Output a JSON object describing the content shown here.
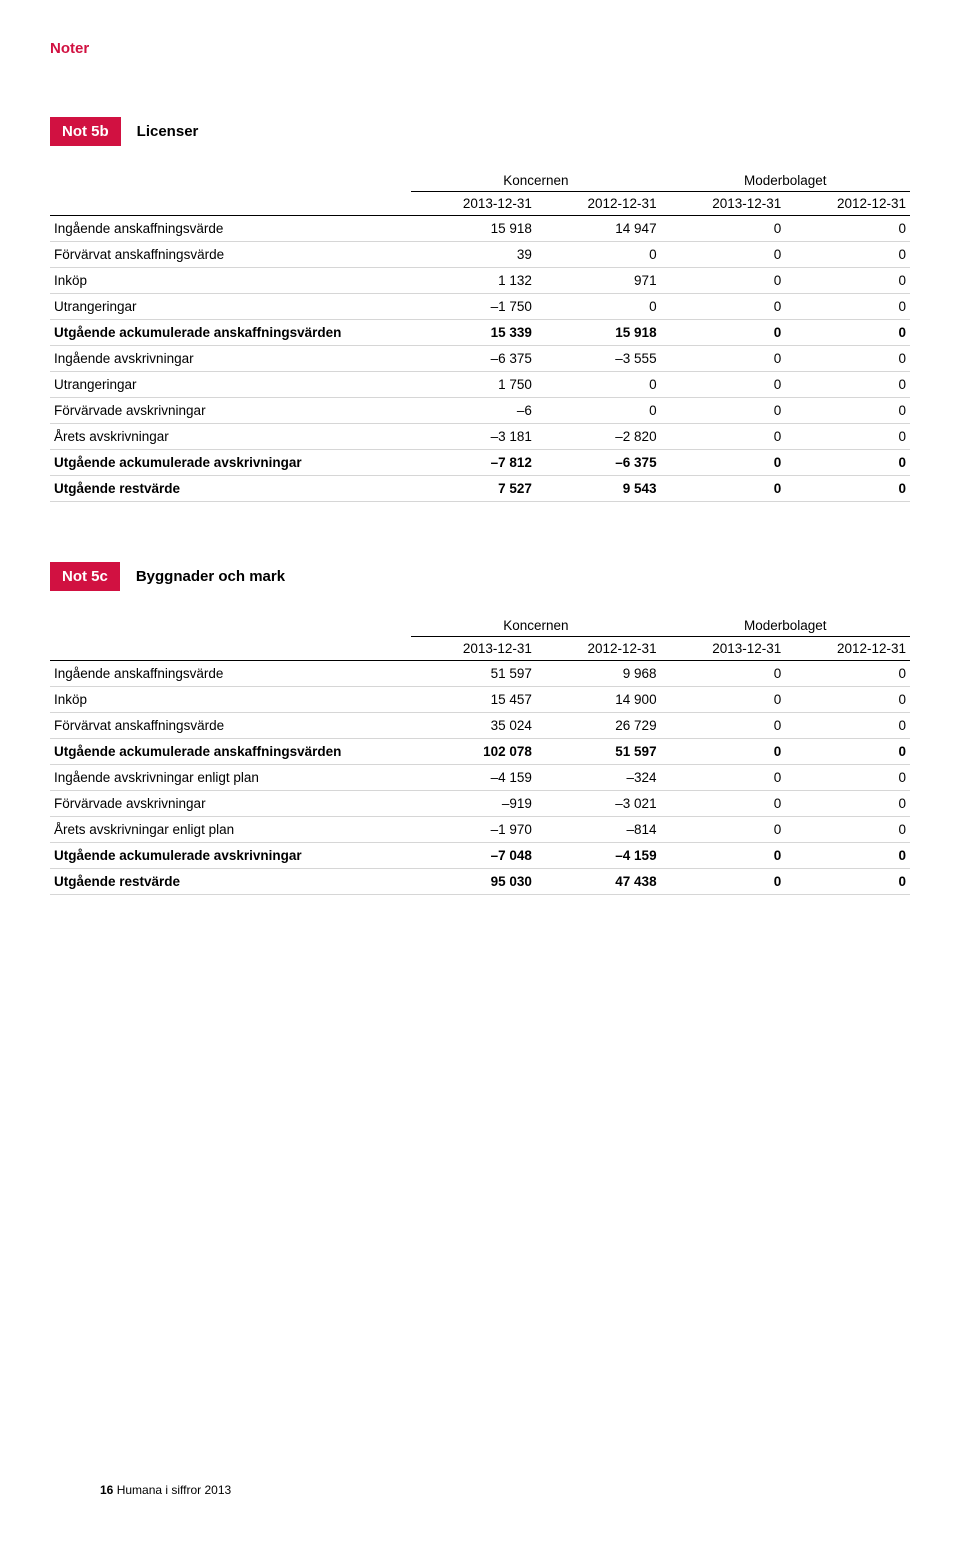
{
  "header": {
    "title": "Noter"
  },
  "notes": [
    {
      "badge": "Not 5b",
      "title": "Licenser",
      "groupHeaders": [
        "Koncernen",
        "Moderbolaget"
      ],
      "dateHeaders": [
        "2013-12-31",
        "2012-12-31",
        "2013-12-31",
        "2012-12-31"
      ],
      "rows": [
        {
          "label": "Ingående anskaffningsvärde",
          "cells": [
            "15 918",
            "14 947",
            "0",
            "0"
          ],
          "bold": false
        },
        {
          "label": "Förvärvat anskaffningsvärde",
          "cells": [
            "39",
            "0",
            "0",
            "0"
          ],
          "bold": false
        },
        {
          "label": "Inköp",
          "cells": [
            "1 132",
            "971",
            "0",
            "0"
          ],
          "bold": false
        },
        {
          "label": "Utrangeringar",
          "cells": [
            "–1 750",
            "0",
            "0",
            "0"
          ],
          "bold": false
        },
        {
          "label": "Utgående ackumulerade anskaffningsvärden",
          "cells": [
            "15 339",
            "15 918",
            "0",
            "0"
          ],
          "bold": true
        },
        {
          "label": "Ingående avskrivningar",
          "cells": [
            "–6 375",
            "–3 555",
            "0",
            "0"
          ],
          "bold": false
        },
        {
          "label": "Utrangeringar",
          "cells": [
            "1 750",
            "0",
            "0",
            "0"
          ],
          "bold": false
        },
        {
          "label": "Förvärvade avskrivningar",
          "cells": [
            "–6",
            "0",
            "0",
            "0"
          ],
          "bold": false
        },
        {
          "label": "Årets avskrivningar",
          "cells": [
            "–3 181",
            "–2 820",
            "0",
            "0"
          ],
          "bold": false
        },
        {
          "label": "Utgående ackumulerade avskrivningar",
          "cells": [
            "–7 812",
            "–6 375",
            "0",
            "0"
          ],
          "bold": true
        },
        {
          "label": "Utgående restvärde",
          "cells": [
            "7 527",
            "9 543",
            "0",
            "0"
          ],
          "bold": true
        }
      ]
    },
    {
      "badge": "Not 5c",
      "title": "Byggnader och mark",
      "groupHeaders": [
        "Koncernen",
        "Moderbolaget"
      ],
      "dateHeaders": [
        "2013-12-31",
        "2012-12-31",
        "2013-12-31",
        "2012-12-31"
      ],
      "rows": [
        {
          "label": "Ingående anskaffningsvärde",
          "cells": [
            "51 597",
            "9 968",
            "0",
            "0"
          ],
          "bold": false
        },
        {
          "label": "Inköp",
          "cells": [
            "15 457",
            "14 900",
            "0",
            "0"
          ],
          "bold": false
        },
        {
          "label": "Förvärvat anskaffningsvärde",
          "cells": [
            "35 024",
            "26 729",
            "0",
            "0"
          ],
          "bold": false
        },
        {
          "label": "Utgående ackumulerade anskaffningsvärden",
          "cells": [
            "102 078",
            "51 597",
            "0",
            "0"
          ],
          "bold": true
        },
        {
          "label": "Ingående avskrivningar enligt plan",
          "cells": [
            "–4 159",
            "–324",
            "0",
            "0"
          ],
          "bold": false
        },
        {
          "label": "Förvärvade avskrivningar",
          "cells": [
            "–919",
            "–3 021",
            "0",
            "0"
          ],
          "bold": false
        },
        {
          "label": "Årets avskrivningar enligt plan",
          "cells": [
            "–1 970",
            "–814",
            "0",
            "0"
          ],
          "bold": false
        },
        {
          "label": "Utgående ackumulerade avskrivningar",
          "cells": [
            "–7 048",
            "–4 159",
            "0",
            "0"
          ],
          "bold": true
        },
        {
          "label": "Utgående restvärde",
          "cells": [
            "95 030",
            "47 438",
            "0",
            "0"
          ],
          "bold": true
        }
      ]
    }
  ],
  "footer": {
    "pageNumber": "16",
    "docTitle": "Humana i siffror 2013"
  }
}
